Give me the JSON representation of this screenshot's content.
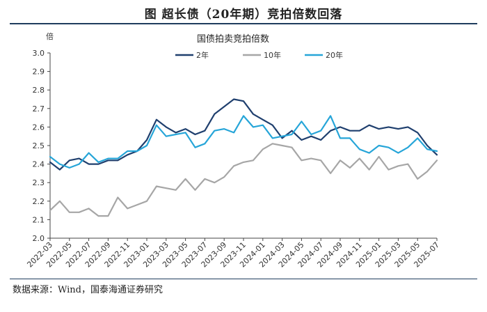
{
  "header": {
    "title": "图    超长债（20年期）竞拍倍数回落"
  },
  "footer": {
    "source": "数据来源：Wind，国泰海通证券研究"
  },
  "chart_data": {
    "type": "line",
    "title": "国债拍卖竞拍倍数",
    "ylabel": "倍",
    "xlabel": "",
    "ylim": [
      2.0,
      3.0
    ],
    "yticks": [
      "3.0",
      "2.9",
      "2.8",
      "2.7",
      "2.6",
      "2.5",
      "2.4",
      "2.3",
      "2.2",
      "2.1",
      "2.0"
    ],
    "xticks": [
      "2022-03",
      "2022-05",
      "2022-07",
      "2022-09",
      "2022-11",
      "2023-01",
      "2023-03",
      "2023-05",
      "2023-07",
      "2023-09",
      "2023-11",
      "2024-01",
      "2024-03",
      "2024-05",
      "2024-07",
      "2024-09",
      "2024-11",
      "2025-01",
      "2025-03",
      "2025-05",
      "2025-07"
    ],
    "x_range": [
      0,
      40
    ],
    "legend_position": "top-center",
    "grid": false,
    "series": [
      {
        "name": "2年",
        "color": "#1f3f6e",
        "x": [
          0,
          1,
          2,
          3,
          4,
          5,
          6,
          7,
          8,
          9,
          10,
          11,
          12,
          13,
          14,
          15,
          16,
          17,
          18,
          19,
          20,
          21,
          22,
          23,
          24,
          25,
          26,
          27,
          28,
          29,
          30,
          31,
          32,
          33,
          34,
          35,
          36,
          37,
          38,
          39,
          40
        ],
        "values": [
          2.41,
          2.37,
          2.42,
          2.43,
          2.4,
          2.4,
          2.42,
          2.42,
          2.45,
          2.47,
          2.53,
          2.64,
          2.6,
          2.57,
          2.59,
          2.56,
          2.58,
          2.67,
          2.71,
          2.75,
          2.74,
          2.67,
          2.64,
          2.61,
          2.54,
          2.58,
          2.53,
          2.55,
          2.53,
          2.58,
          2.6,
          2.58,
          2.58,
          2.61,
          2.59,
          2.6,
          2.59,
          2.6,
          2.57,
          2.5,
          2.45
        ]
      },
      {
        "name": "10年",
        "color": "#a6a6a6",
        "x": [
          0,
          1,
          2,
          3,
          4,
          5,
          6,
          7,
          8,
          9,
          10,
          11,
          12,
          13,
          14,
          15,
          16,
          17,
          18,
          19,
          20,
          21,
          22,
          23,
          24,
          25,
          26,
          27,
          28,
          29,
          30,
          31,
          32,
          33,
          34,
          35,
          36,
          37,
          38,
          39,
          40
        ],
        "values": [
          2.15,
          2.2,
          2.14,
          2.14,
          2.16,
          2.12,
          2.12,
          2.22,
          2.16,
          2.18,
          2.2,
          2.28,
          2.27,
          2.26,
          2.32,
          2.26,
          2.32,
          2.3,
          2.33,
          2.39,
          2.41,
          2.42,
          2.48,
          2.51,
          2.5,
          2.49,
          2.42,
          2.43,
          2.42,
          2.35,
          2.42,
          2.38,
          2.43,
          2.37,
          2.44,
          2.37,
          2.39,
          2.4,
          2.32,
          2.36,
          2.42
        ]
      },
      {
        "name": "20年",
        "color": "#26a5d8",
        "x": [
          0,
          1,
          2,
          3,
          4,
          5,
          6,
          7,
          8,
          9,
          10,
          11,
          12,
          13,
          14,
          15,
          16,
          17,
          18,
          19,
          20,
          21,
          22,
          23,
          24,
          25,
          26,
          27,
          28,
          29,
          30,
          31,
          32,
          33,
          34,
          35,
          36,
          37,
          38,
          39,
          40
        ],
        "values": [
          2.44,
          2.4,
          2.38,
          2.4,
          2.46,
          2.41,
          2.43,
          2.43,
          2.47,
          2.47,
          2.5,
          2.61,
          2.55,
          2.56,
          2.57,
          2.49,
          2.51,
          2.58,
          2.59,
          2.57,
          2.66,
          2.6,
          2.61,
          2.54,
          2.55,
          2.56,
          2.63,
          2.56,
          2.58,
          2.66,
          2.54,
          2.54,
          2.48,
          2.46,
          2.5,
          2.49,
          2.46,
          2.49,
          2.54,
          2.48,
          2.47
        ]
      }
    ]
  }
}
